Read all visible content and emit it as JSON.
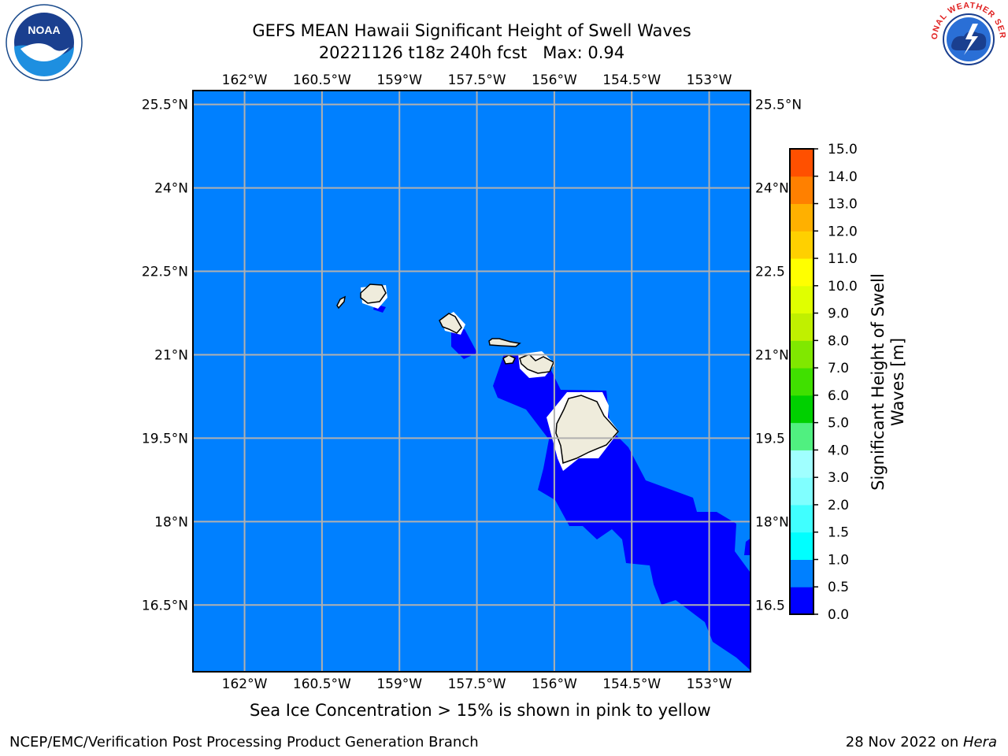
{
  "title": {
    "line1": "GEFS MEAN Hawaii Significant Height of Swell Waves",
    "line2": "20221126 t18z 240h fcst   Max: 0.94"
  },
  "map": {
    "lon_ticks": [
      "162°W",
      "160.5°W",
      "159°W",
      "157.5°W",
      "156°W",
      "154.5°W",
      "153°W"
    ],
    "lon_values": [
      -162,
      -160.5,
      -159,
      -157.5,
      -156,
      -154.5,
      -153
    ],
    "lat_ticks": [
      "25.5°N",
      "24°N",
      "22.5°N",
      "21°N",
      "19.5°N",
      "18°N",
      "16.5°N"
    ],
    "lat_values": [
      25.5,
      24,
      22.5,
      21,
      19.5,
      18,
      16.5
    ],
    "right_lat_ticks": [
      "25.5°N",
      "24°N",
      "22.5",
      "21°N",
      "19.5",
      "18°N",
      "16.5"
    ],
    "extent": {
      "lon_min": -163,
      "lon_max": -152.2,
      "lat_min": 15.3,
      "lat_max": 25.75
    },
    "grid": true,
    "ocean_color": "#0080ff",
    "low_swell_color": "#0000ff",
    "land_color": "#efecdc",
    "masked_color": "#ffffff"
  },
  "colorbar": {
    "label": "Significant Height of Swell Waves [m]",
    "levels": [
      "0.0",
      "0.5",
      "1.0",
      "1.5",
      "2.0",
      "3.0",
      "4.0",
      "5.0",
      "6.0",
      "7.0",
      "8.0",
      "9.0",
      "10.0",
      "11.0",
      "12.0",
      "13.0",
      "14.0",
      "15.0"
    ],
    "colors": [
      "#0000ff",
      "#0080ff",
      "#00ffff",
      "#40ffff",
      "#80ffff",
      "#a0ffff",
      "#50f080",
      "#00d000",
      "#40e000",
      "#80e800",
      "#c0f000",
      "#e0ff00",
      "#ffff00",
      "#ffd000",
      "#ffb000",
      "#ff8000",
      "#ff5000",
      "#ff2000",
      "#ff0000"
    ]
  },
  "note": "Sea Ice Concentration > 15% is shown in pink to yellow",
  "footer": {
    "left": "NCEP/EMC/Verification Post Processing Product Generation Branch",
    "right_date": "28 Nov 2022 on ",
    "right_host": "Hera"
  },
  "logos": {
    "noaa_text": "NOAA",
    "nws_text": "NATIONAL WEATHER SERVICE"
  }
}
